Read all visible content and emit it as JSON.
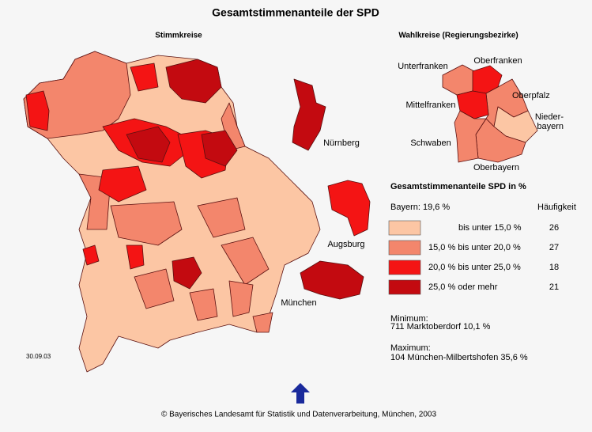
{
  "title": "Gesamtstimmenanteile der SPD",
  "left_map": {
    "title": "Stimmkreise",
    "insets": [
      "Nürnberg",
      "Augsburg",
      "München"
    ]
  },
  "right_map": {
    "title": "Wahlkreise (Regierungsbezirke)",
    "regions": [
      [
        "Unterfranken"
      ],
      [
        "Oberfranken"
      ],
      [
        "Oberpfalz"
      ],
      [
        "Mittelfranken"
      ],
      [
        "Nieder-",
        "bayern"
      ],
      [
        "Schwaben"
      ],
      [
        "Oberbayern"
      ]
    ]
  },
  "legend": {
    "title": "Gesamtstimmenanteile SPD in %",
    "bayern": "Bayern:  19,6 %",
    "count_header": "Häufigkeit",
    "classes": [
      {
        "label": "bis unter  15,0 %",
        "count": 26,
        "color": "#fcc6a4"
      },
      {
        "label": "15,0 % bis unter  20,0 %",
        "count": 27,
        "color": "#f3866c"
      },
      {
        "label": "20,0 % bis unter  25,0 %",
        "count": 18,
        "color": "#f41414"
      },
      {
        "label": "25,0 % oder mehr",
        "count": 21,
        "color": "#c30a10"
      }
    ]
  },
  "minimum": {
    "heading": "Minimum:",
    "text": "711 Marktoberdorf  10,1 %"
  },
  "maximum": {
    "heading": "Maximum:",
    "text": "104 München-Milbertshofen  35,6 %"
  },
  "date": "30.09.03",
  "footer": "© Bayerisches Landesamt für Statistik und Datenverarbeitung, München, 2003"
}
